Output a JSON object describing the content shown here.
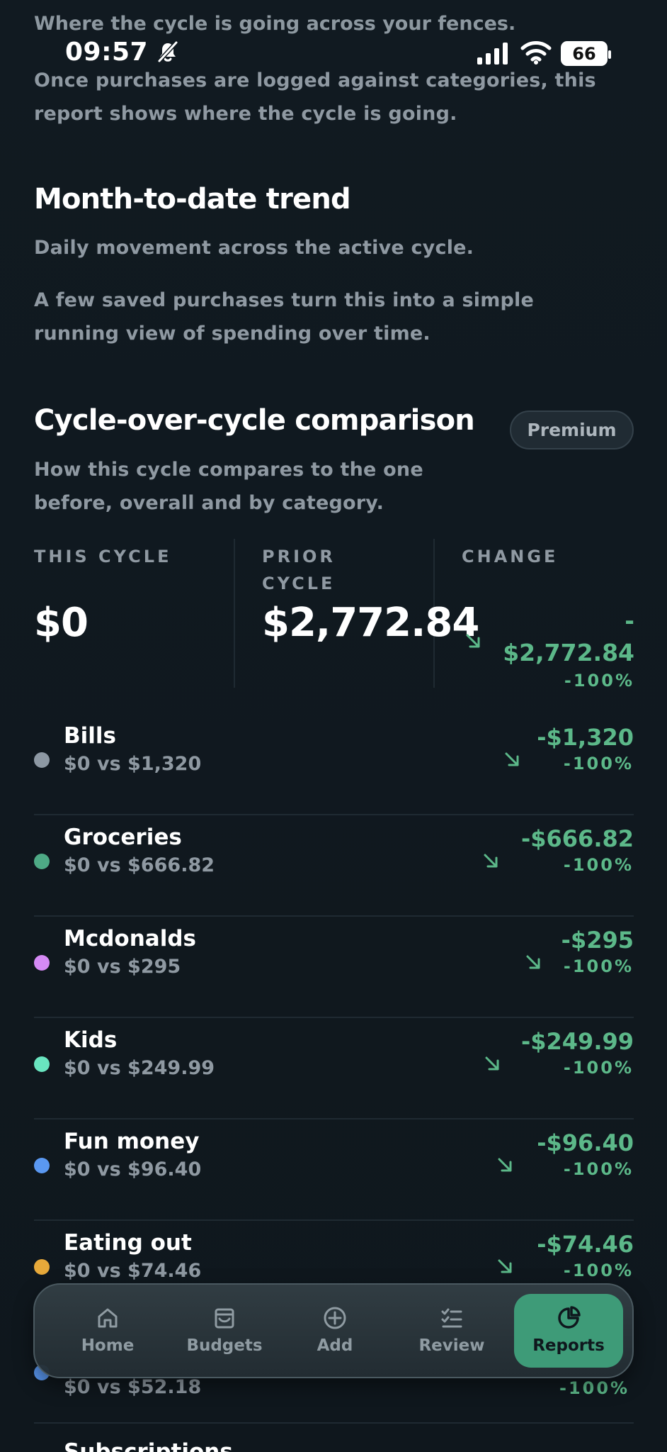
{
  "status_bar": {
    "time": "09:57",
    "battery": "66",
    "icons": [
      "silent-bell-icon",
      "cellular-signal-icon",
      "wifi-icon",
      "battery-icon"
    ]
  },
  "sections": {
    "category_summary_heading": "Where the cycle is going across your fences.",
    "category_summary_text": "Once purchases are logged against categories, this report shows where the cycle is going.",
    "trend_title": "Month-to-date trend",
    "trend_subtitle": "Daily movement across the active cycle.",
    "trend_text": "A few saved purchases turn this into a simple running view of spending over time.",
    "comparison_title": "Cycle-over-cycle comparison",
    "premium_badge": "Premium",
    "comparison_subtitle": "How this cycle compares to the one before, overall and by category."
  },
  "comparison": {
    "this_cycle_label": "THIS CYCLE",
    "this_cycle_value": "$0",
    "prior_cycle_label": "PRIOR CYCLE",
    "prior_cycle_value": "$2,772.84",
    "change_label": "CHANGE",
    "change_value_line1": "-",
    "change_value_line2": "$2,772.84",
    "change_percent": "-100%",
    "colors": {
      "positive_change": "#5cb889",
      "muted_text": "#8f99a2",
      "background": "#121a21"
    }
  },
  "categories": [
    {
      "name": "Bills",
      "compare": "$0 vs $1,320",
      "change": "-$1,320",
      "percent": "-100%",
      "color": "#8d98a3"
    },
    {
      "name": "Groceries",
      "compare": "$0 vs $666.82",
      "change": "-$666.82",
      "percent": "-100%",
      "color": "#4ea985"
    },
    {
      "name": "Mcdonalds",
      "compare": "$0 vs $295",
      "change": "-$295",
      "percent": "-100%",
      "color": "#d58af5"
    },
    {
      "name": "Kids",
      "compare": "$0 vs $249.99",
      "change": "-$249.99",
      "percent": "-100%",
      "color": "#69e5c0"
    },
    {
      "name": "Fun money",
      "compare": "$0 vs $96.40",
      "change": "-$96.40",
      "percent": "-100%",
      "color": "#5a98f1"
    },
    {
      "name": "Eating out",
      "compare": "$0 vs $74.46",
      "change": "-$74.46",
      "percent": "-100%",
      "color": "#e7a93a"
    }
  ],
  "partial_rows": {
    "hidden_compare": "$0 vs $52.18",
    "hidden_percent": "-100%",
    "next_title": "Subscriptions"
  },
  "tabs": [
    {
      "label": "Home",
      "icon": "home-icon",
      "active": false
    },
    {
      "label": "Budgets",
      "icon": "wallet-icon",
      "active": false
    },
    {
      "label": "Add",
      "icon": "add-circle-icon",
      "active": false
    },
    {
      "label": "Review",
      "icon": "checklist-icon",
      "active": false
    },
    {
      "label": "Reports",
      "icon": "pie-chart-icon",
      "active": true
    }
  ]
}
